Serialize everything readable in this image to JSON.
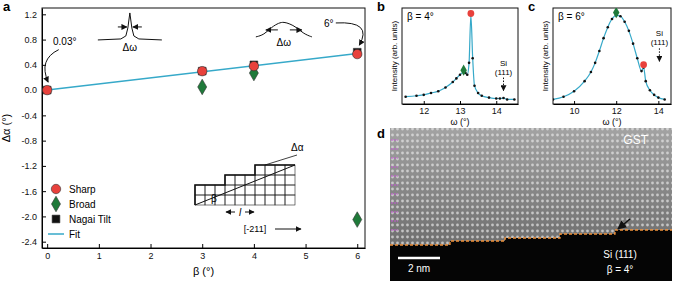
{
  "chart_data": [
    {
      "panel_label": "a",
      "type": "scatter",
      "x_label": "β (°)",
      "y_label": "Δα (°)",
      "xlim": [
        -0.1,
        6.15
      ],
      "ylim": [
        -2.5,
        1.3
      ],
      "xticks": [
        0,
        1,
        2,
        3,
        4,
        5,
        6
      ],
      "yticks": [
        {
          "value": -2.4,
          "label": "-2.4"
        },
        {
          "value": -2.0,
          "label": "-2.0"
        },
        {
          "value": -1.6,
          "label": "-1.6"
        },
        {
          "value": -1.2,
          "label": "-1.2"
        },
        {
          "value": -0.8,
          "label": "-0.8"
        },
        {
          "value": -0.4,
          "label": "-0.4"
        },
        {
          "value": 0.0,
          "label": "0.0"
        },
        {
          "value": 0.4,
          "label": "0.4"
        },
        {
          "value": 0.8,
          "label": "0.8"
        },
        {
          "value": 1.2,
          "label": "1.2"
        }
      ],
      "legend": "lower left",
      "series": [
        {
          "name": "Sharp",
          "color": "#e8413c",
          "marker": "circle",
          "x": [
            0,
            3,
            4,
            6
          ],
          "values": [
            0.0,
            0.3,
            0.38,
            0.57
          ]
        },
        {
          "name": "Broad",
          "color": "#1f7a3a",
          "marker": "diamond",
          "x": [
            3,
            4,
            6
          ],
          "values": [
            0.05,
            0.27,
            -2.05
          ]
        },
        {
          "name": "Nagai Tilt",
          "color": "#111111",
          "marker": "square",
          "x": [
            0,
            3,
            4,
            6
          ],
          "values": [
            0.0,
            0.3,
            0.4,
            0.6
          ]
        },
        {
          "name": "Fit",
          "type": "line",
          "color": "#36a9c9",
          "x": [
            0,
            6
          ],
          "values": [
            0.0,
            0.58
          ]
        }
      ],
      "annotations": [
        {
          "text": "0.03°",
          "x": 0.34,
          "y": 0.72
        },
        {
          "text": "6°",
          "x": 5.45,
          "y": 1.0
        },
        {
          "text": "Δω",
          "x": 1.6,
          "y": 0.62
        },
        {
          "text": "Δω",
          "x": 4.58,
          "y": 0.7
        }
      ],
      "inset_labels": [
        "Δα",
        "β",
        "l",
        "[-211]"
      ]
    },
    {
      "panel_label": "b",
      "type": "line",
      "title": "β = 4°",
      "x_label": "ω (°)",
      "y_label": "Intensity (arb. units)",
      "xlim": [
        11.4,
        14.6
      ],
      "ylim": [
        0,
        1.05
      ],
      "xticks": [
        12,
        13,
        14
      ],
      "tick_labels": "x",
      "series": [
        {
          "color": "#36a9c9",
          "marker": "dot",
          "x": [
            11.5,
            11.8,
            12.0,
            12.2,
            12.4,
            12.6,
            12.8,
            12.9,
            13.0,
            13.1,
            13.15,
            13.2,
            13.25,
            13.3,
            13.35,
            13.4,
            13.5,
            13.6,
            13.8,
            14.0,
            14.1,
            14.2,
            14.3,
            14.5
          ],
          "values": [
            0.08,
            0.09,
            0.1,
            0.12,
            0.14,
            0.18,
            0.24,
            0.28,
            0.32,
            0.35,
            0.34,
            0.32,
            0.45,
            0.97,
            0.5,
            0.2,
            0.12,
            0.09,
            0.07,
            0.06,
            0.06,
            0.065,
            0.05,
            0.05
          ]
        }
      ],
      "peaks": [
        {
          "x": 13.3,
          "y": 0.99,
          "color": "#e8413c",
          "marker": "circle"
        },
        {
          "x": 13.1,
          "y": 0.37,
          "color": "#1f7a3a",
          "marker": "diamond"
        }
      ],
      "annotations": [
        {
          "text": "Si (111)",
          "x": 14.2,
          "y": 0.3
        }
      ]
    },
    {
      "panel_label": "c",
      "type": "line",
      "title": "β = 6°",
      "x_label": "ω (°)",
      "y_label": "Intensity (arb. units)",
      "xlim": [
        9.0,
        14.6
      ],
      "ylim": [
        0,
        1.05
      ],
      "xticks": [
        10,
        12,
        14
      ],
      "tick_labels": "x",
      "series": [
        {
          "color": "#36a9c9",
          "marker": "dot",
          "x": [
            9.0,
            9.5,
            10.0,
            10.5,
            10.8,
            11.0,
            11.2,
            11.4,
            11.6,
            11.8,
            12.0,
            12.2,
            12.4,
            12.6,
            12.8,
            13.0,
            13.2,
            13.3,
            13.4,
            13.6,
            13.8,
            14.0,
            14.3
          ],
          "values": [
            0.05,
            0.08,
            0.14,
            0.25,
            0.35,
            0.45,
            0.58,
            0.72,
            0.84,
            0.93,
            0.97,
            0.96,
            0.9,
            0.8,
            0.66,
            0.5,
            0.36,
            0.4,
            0.25,
            0.15,
            0.1,
            0.07,
            0.05
          ]
        }
      ],
      "peaks": [
        {
          "x": 12.0,
          "y": 1.0,
          "color": "#1f7a3a",
          "marker": "diamond"
        },
        {
          "x": 13.3,
          "y": 0.43,
          "color": "#e8413c",
          "marker": "circle"
        }
      ],
      "annotations": [
        {
          "text": "Si (111)",
          "x": 14.05,
          "y": 0.62
        }
      ]
    },
    {
      "panel_label": "d",
      "type": "image",
      "labels": [
        "GST",
        "2 nm",
        "Si (111)",
        "β = 4°"
      ]
    }
  ]
}
